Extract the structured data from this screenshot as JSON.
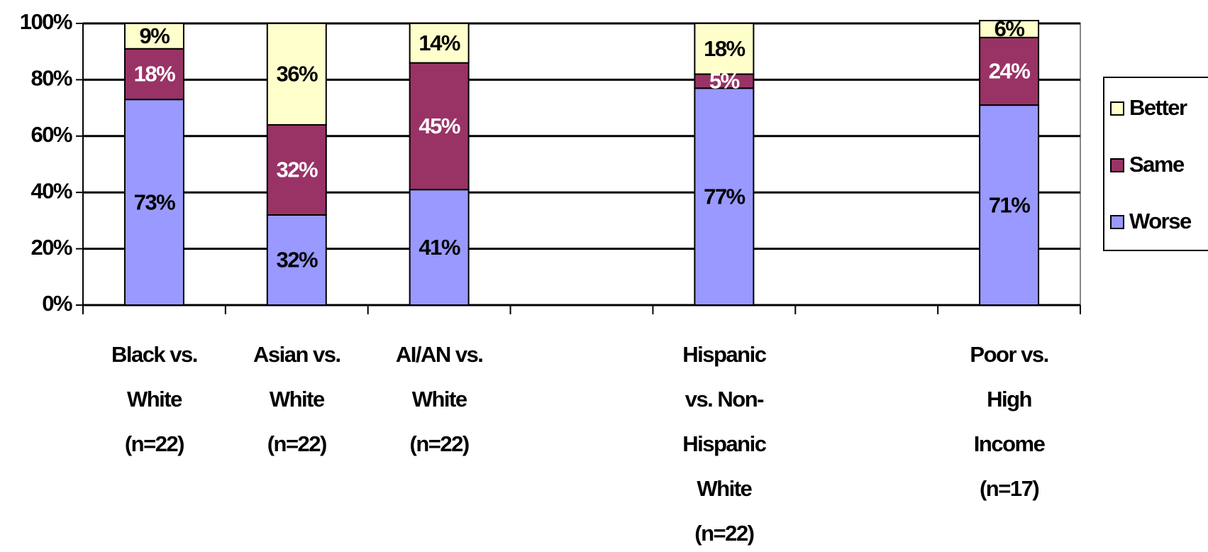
{
  "chart_data": {
    "type": "stacked_bar",
    "categories": [
      [
        "Black vs.",
        "White",
        "(n=22)"
      ],
      [
        "Asian vs.",
        "White",
        "(n=22)"
      ],
      [
        "AI/AN vs.",
        "White",
        "(n=22)"
      ],
      null,
      [
        "Hispanic",
        "vs. Non-",
        "Hispanic",
        "White",
        "(n=22)"
      ],
      null,
      [
        "Poor vs.",
        "High",
        "Income",
        "(n=17)"
      ]
    ],
    "series": [
      {
        "name": "Worse",
        "color": "#9999ff",
        "label_color": "#000000",
        "values": [
          73,
          32,
          41,
          null,
          77,
          null,
          71
        ],
        "value_labels": [
          "73%",
          "32%",
          "41%",
          null,
          "77%",
          null,
          "71%"
        ]
      },
      {
        "name": "Same",
        "color": "#993366",
        "label_color": "#ffffff",
        "values": [
          18,
          32,
          45,
          null,
          5,
          null,
          24
        ],
        "value_labels": [
          "18%",
          "32%",
          "45%",
          null,
          "5%",
          null,
          "24%"
        ]
      },
      {
        "name": "Better",
        "color": "#ffffcc",
        "label_color": "#000000",
        "values": [
          9,
          36,
          14,
          null,
          18,
          null,
          6
        ],
        "value_labels": [
          "9%",
          "36%",
          "14%",
          null,
          "18%",
          null,
          "6%"
        ]
      }
    ],
    "ylim": [
      0,
      100
    ],
    "yticks": [
      {
        "value": 0,
        "label": "0%"
      },
      {
        "value": 20,
        "label": "20%"
      },
      {
        "value": 40,
        "label": "40%"
      },
      {
        "value": 60,
        "label": "60%"
      },
      {
        "value": 80,
        "label": "80%"
      },
      {
        "value": 100,
        "label": "100%"
      }
    ],
    "grid": true,
    "legend": "right"
  }
}
